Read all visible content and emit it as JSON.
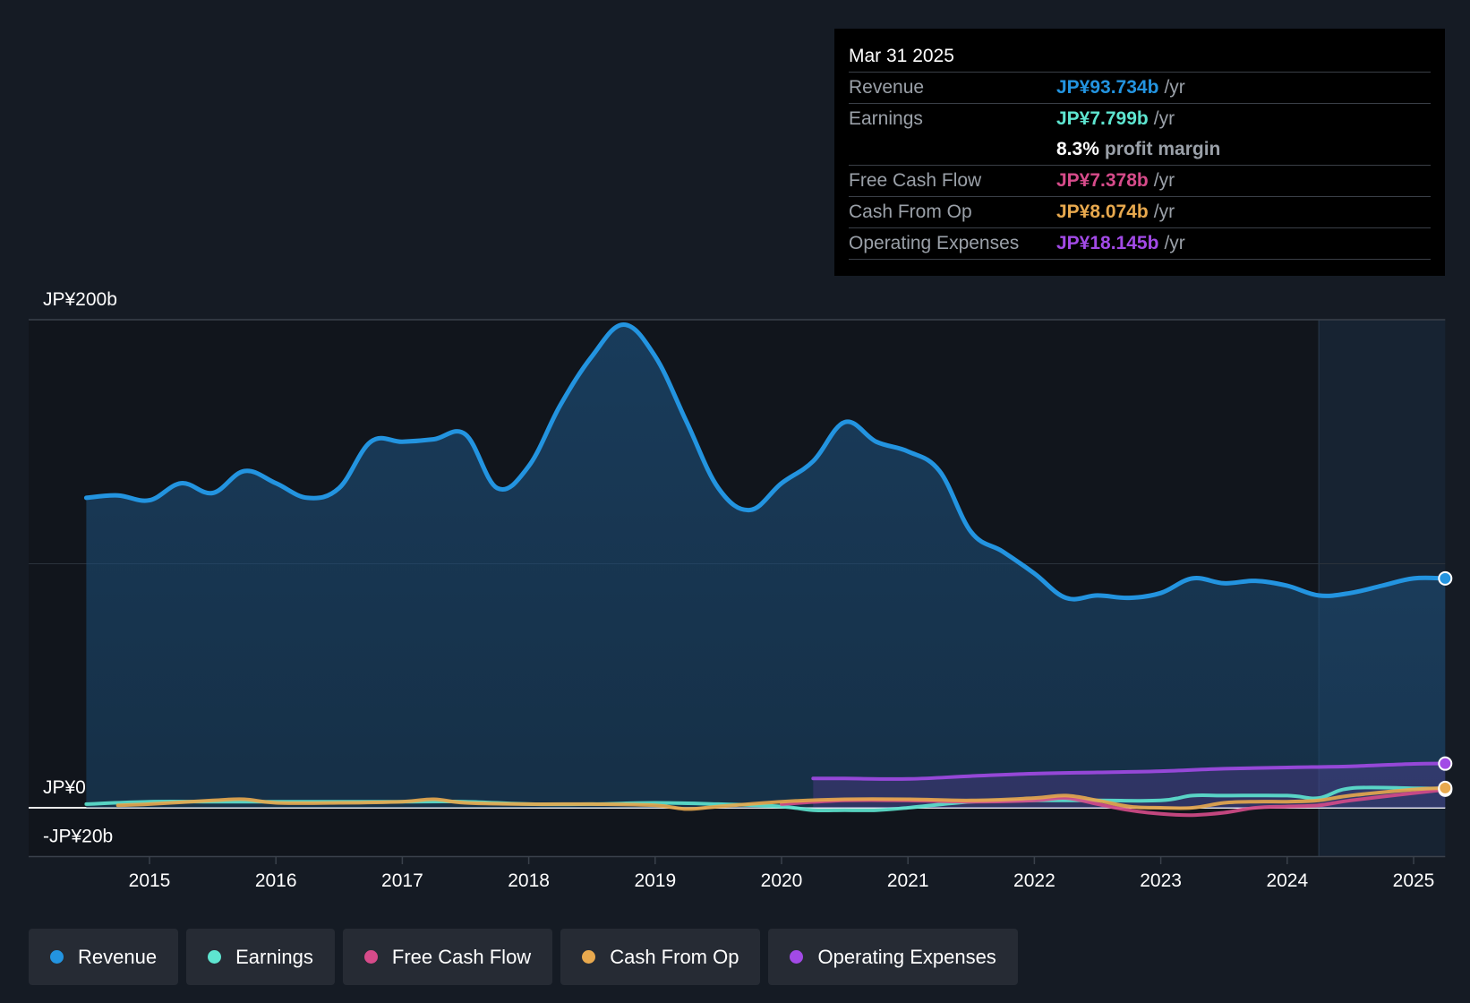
{
  "tooltip": {
    "date": "Mar 31 2025",
    "rows": [
      {
        "label": "Revenue",
        "value": "JP¥93.734b",
        "unit": "/yr",
        "color": "#2394e0"
      },
      {
        "label": "Earnings",
        "value": "JP¥7.799b",
        "unit": "/yr",
        "color": "#5ee5d0"
      },
      {
        "label": "",
        "value": "8.3%",
        "unit": "profit margin",
        "color": "#ffffff"
      },
      {
        "label": "Free Cash Flow",
        "value": "JP¥7.378b",
        "unit": "/yr",
        "color": "#d64b8a"
      },
      {
        "label": "Cash From Op",
        "value": "JP¥8.074b",
        "unit": "/yr",
        "color": "#e8a94e"
      },
      {
        "label": "Operating Expenses",
        "value": "JP¥18.145b",
        "unit": "/yr",
        "color": "#a24ae6"
      }
    ]
  },
  "legend": [
    {
      "label": "Revenue",
      "color": "#2394e0"
    },
    {
      "label": "Earnings",
      "color": "#5ee5d0"
    },
    {
      "label": "Free Cash Flow",
      "color": "#d64b8a"
    },
    {
      "label": "Cash From Op",
      "color": "#e8a94e"
    },
    {
      "label": "Operating Expenses",
      "color": "#a24ae6"
    }
  ],
  "chart_data": {
    "type": "line",
    "title": "",
    "y_tick_labels": [
      {
        "label": "JP¥200b",
        "value": 200
      },
      {
        "label": "JP¥0",
        "value": 0
      },
      {
        "label": "-JP¥20b",
        "value": -20
      }
    ],
    "ylim": [
      -20,
      200
    ],
    "xlim": [
      2014.5,
      2025.25
    ],
    "x_ticks": [
      2015,
      2016,
      2017,
      2018,
      2019,
      2020,
      2021,
      2022,
      2023,
      2024,
      2025
    ],
    "x_tick_labels": [
      "2015",
      "2016",
      "2017",
      "2018",
      "2019",
      "2020",
      "2021",
      "2022",
      "2023",
      "2024",
      "2025"
    ],
    "forecast_start": 2024.25,
    "series": [
      {
        "name": "Revenue",
        "color": "#2394e0",
        "area": true,
        "x": [
          2014.5,
          2014.75,
          2015.0,
          2015.25,
          2015.5,
          2015.75,
          2016.0,
          2016.25,
          2016.5,
          2016.75,
          2017.0,
          2017.25,
          2017.5,
          2017.75,
          2018.0,
          2018.25,
          2018.5,
          2018.75,
          2019.0,
          2019.25,
          2019.5,
          2019.75,
          2020.0,
          2020.25,
          2020.5,
          2020.75,
          2021.0,
          2021.25,
          2021.5,
          2021.75,
          2022.0,
          2022.25,
          2022.5,
          2022.75,
          2023.0,
          2023.25,
          2023.5,
          2023.75,
          2024.0,
          2024.25,
          2024.5,
          2024.75,
          2025.0,
          2025.25
        ],
        "values": [
          127,
          128,
          126,
          133,
          129,
          138,
          133,
          127,
          131,
          150,
          150,
          151,
          153,
          131,
          140,
          165,
          185,
          198,
          185,
          158,
          131,
          122,
          133,
          142,
          158,
          150,
          146,
          138,
          113,
          105,
          96,
          86,
          87,
          86,
          88,
          94,
          92,
          93,
          91,
          87,
          88,
          91,
          94,
          94
        ]
      },
      {
        "name": "Earnings",
        "color": "#5ee5d0",
        "x": [
          2014.5,
          2015.0,
          2015.5,
          2016.0,
          2016.5,
          2017.0,
          2017.5,
          2018.0,
          2018.5,
          2019.0,
          2019.5,
          2020.0,
          2020.25,
          2020.5,
          2020.75,
          2021.0,
          2021.5,
          2022.0,
          2022.5,
          2023.0,
          2023.25,
          2023.5,
          2024.0,
          2024.25,
          2024.5,
          2025.0,
          2025.25
        ],
        "values": [
          1.5,
          2.5,
          2.5,
          2.5,
          2.5,
          2.5,
          2.5,
          1.5,
          1.5,
          2,
          1.5,
          0.5,
          -1,
          -1,
          -1,
          0,
          2.5,
          3,
          3,
          3,
          5,
          5,
          5,
          4,
          8,
          8,
          7.8
        ]
      },
      {
        "name": "Free Cash Flow",
        "color": "#d64b8a",
        "x": [
          2020.0,
          2020.5,
          2021.0,
          2021.5,
          2022.0,
          2022.25,
          2022.5,
          2022.75,
          2023.0,
          2023.25,
          2023.5,
          2023.75,
          2024.0,
          2024.25,
          2024.5,
          2025.0,
          2025.25
        ],
        "values": [
          1.5,
          3,
          3,
          2.5,
          3,
          4,
          1.5,
          -1,
          -2.5,
          -3,
          -2,
          0,
          0.5,
          1,
          3,
          6,
          7.4
        ]
      },
      {
        "name": "Cash From Op",
        "color": "#e8a94e",
        "x": [
          2014.75,
          2015.0,
          2015.5,
          2015.75,
          2016.0,
          2016.5,
          2017.0,
          2017.25,
          2017.5,
          2018.0,
          2018.5,
          2019.0,
          2019.25,
          2019.5,
          2020.0,
          2020.5,
          2021.0,
          2021.5,
          2022.0,
          2022.25,
          2022.5,
          2022.75,
          2023.0,
          2023.25,
          2023.5,
          2023.75,
          2024.0,
          2024.25,
          2024.5,
          2025.0,
          2025.25
        ],
        "values": [
          1,
          1.5,
          3,
          3.5,
          2,
          2,
          2.5,
          3.5,
          2,
          1.5,
          1.5,
          1,
          -0.5,
          0.5,
          2.5,
          3.5,
          3.5,
          3,
          4,
          5,
          3,
          0.5,
          0,
          0,
          2,
          2.5,
          2.5,
          3,
          5,
          7.5,
          8.1
        ]
      },
      {
        "name": "Operating Expenses",
        "color": "#a24ae6",
        "area": true,
        "x": [
          2020.25,
          2020.5,
          2021.0,
          2021.5,
          2022.0,
          2022.5,
          2023.0,
          2023.5,
          2024.0,
          2024.5,
          2025.0,
          2025.25
        ],
        "values": [
          12,
          12,
          11.8,
          13,
          14,
          14.5,
          15,
          16,
          16.5,
          17,
          18,
          18.1
        ]
      }
    ]
  }
}
